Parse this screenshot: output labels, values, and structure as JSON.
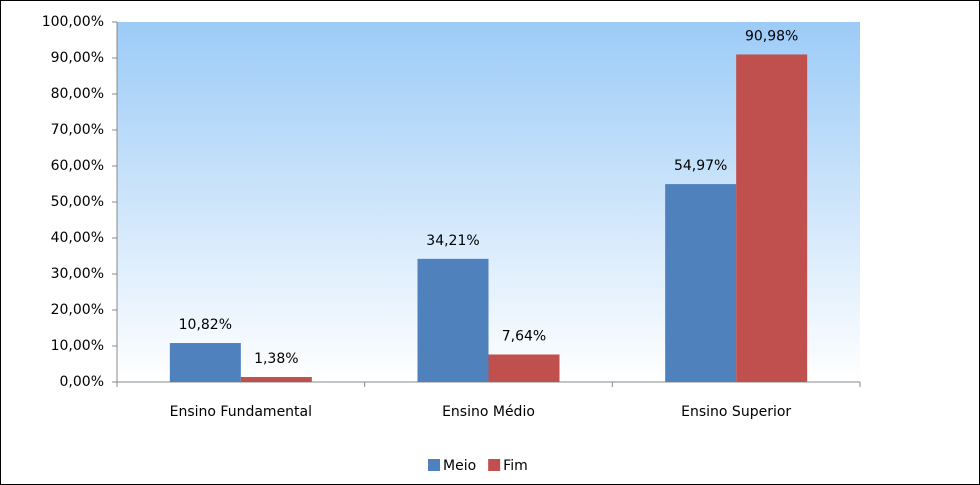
{
  "chart_data": {
    "type": "bar",
    "categories": [
      "Ensino Fundamental",
      "Ensino Médio",
      "Ensino Superior"
    ],
    "series": [
      {
        "name": "Meio",
        "color": "#4f81bd",
        "values": [
          10.82,
          34.21,
          54.97
        ],
        "value_labels": [
          "10,82%",
          "34,21%",
          "54,97%"
        ]
      },
      {
        "name": "Fim",
        "color": "#c0504d",
        "values": [
          1.38,
          7.64,
          90.98
        ],
        "value_labels": [
          "1,38%",
          "7,64%",
          "90,98%"
        ]
      }
    ],
    "ylim": [
      0,
      100
    ],
    "yticks": [
      {
        "value": 0,
        "label": "0,00%"
      },
      {
        "value": 10,
        "label": "10,00%"
      },
      {
        "value": 20,
        "label": "20,00%"
      },
      {
        "value": 30,
        "label": "30,00%"
      },
      {
        "value": 40,
        "label": "40,00%"
      },
      {
        "value": 50,
        "label": "50,00%"
      },
      {
        "value": 60,
        "label": "60,00%"
      },
      {
        "value": 70,
        "label": "70,00%"
      },
      {
        "value": 80,
        "label": "80,00%"
      },
      {
        "value": 90,
        "label": "90,00%"
      },
      {
        "value": 100,
        "label": "100,00%"
      }
    ],
    "legend": "bottom"
  }
}
